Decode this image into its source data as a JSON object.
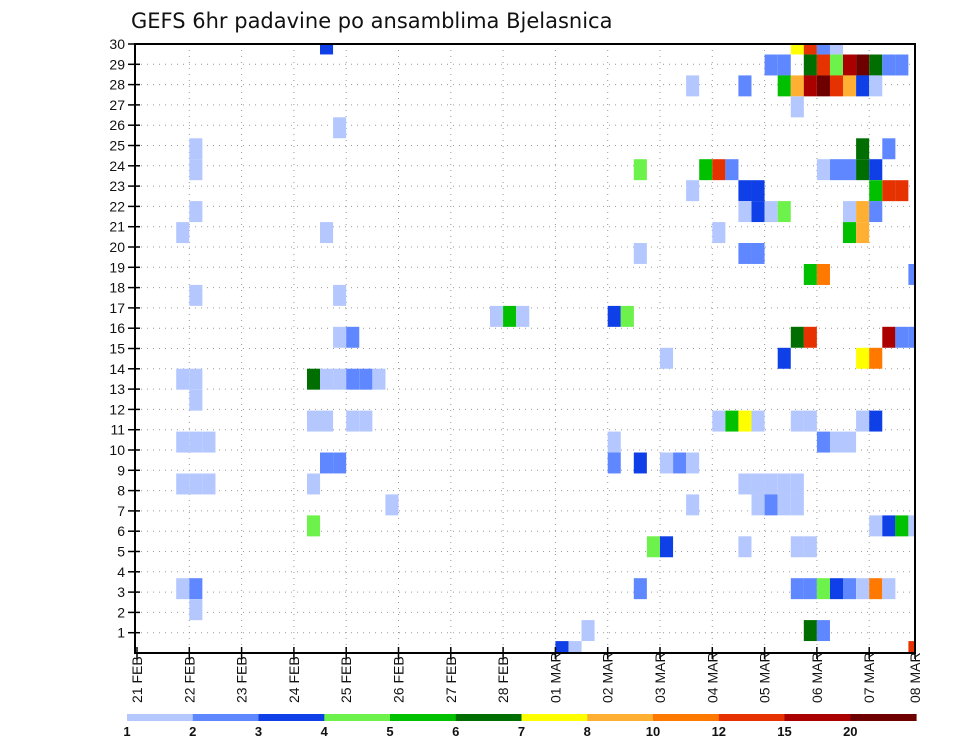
{
  "chart_data": {
    "type": "heatmap",
    "title": "GEFS 6hr padavine po ansamblima Bjelasnica",
    "xlabel": "",
    "ylabel": "",
    "x_axis": {
      "start": "21 FEB",
      "step_hours": 6,
      "steps": 60,
      "tick_labels": [
        "21 FEB",
        "22 FEB",
        "23 FEB",
        "24 FEB",
        "25 FEB",
        "26 FEB",
        "27 FEB",
        "28 FEB",
        "01 MAR",
        "02 MAR",
        "03 MAR",
        "04 MAR",
        "05 MAR",
        "06 MAR",
        "07 MAR",
        "08 MAR"
      ]
    },
    "y_axis": {
      "range": [
        0,
        30
      ],
      "tick_labels": [
        "1",
        "2",
        "3",
        "4",
        "5",
        "6",
        "7",
        "8",
        "9",
        "10",
        "11",
        "12",
        "13",
        "14",
        "15",
        "16",
        "17",
        "18",
        "19",
        "20",
        "21",
        "22",
        "23",
        "24",
        "25",
        "26",
        "27",
        "28",
        "29",
        "30"
      ]
    },
    "grid": true,
    "colorbar": {
      "placement": "bottom",
      "levels": [
        "1",
        "2",
        "3",
        "4",
        "5",
        "6",
        "7",
        "8",
        "10",
        "12",
        "15",
        "20"
      ],
      "colors": [
        "#b4c8ff",
        "#5f87ff",
        "#0f3fe6",
        "#6cf24a",
        "#00c000",
        "#006e00",
        "#ffff00",
        "#ffaf32",
        "#ff7800",
        "#e63200",
        "#aa0000",
        "#6e0000"
      ]
    },
    "cells_format": [
      "step",
      "member",
      "color_class"
    ],
    "cells": [
      [
        14,
        30,
        2
      ],
      [
        50,
        30,
        6
      ],
      [
        51,
        30,
        9
      ],
      [
        52,
        30,
        1
      ],
      [
        53,
        30,
        0
      ],
      [
        48,
        29,
        1
      ],
      [
        49,
        29,
        1
      ],
      [
        51,
        29,
        5
      ],
      [
        52,
        29,
        9
      ],
      [
        53,
        29,
        3
      ],
      [
        54,
        29,
        10
      ],
      [
        55,
        29,
        11
      ],
      [
        56,
        29,
        5
      ],
      [
        57,
        29,
        1
      ],
      [
        58,
        29,
        1
      ],
      [
        42,
        28,
        0
      ],
      [
        46,
        28,
        1
      ],
      [
        49,
        28,
        4
      ],
      [
        50,
        28,
        7
      ],
      [
        51,
        28,
        10
      ],
      [
        52,
        28,
        11
      ],
      [
        53,
        28,
        9
      ],
      [
        54,
        28,
        7
      ],
      [
        55,
        28,
        2
      ],
      [
        56,
        28,
        0
      ],
      [
        50,
        27,
        0
      ],
      [
        15,
        26,
        0
      ],
      [
        4,
        25,
        0
      ],
      [
        55,
        25,
        5
      ],
      [
        57,
        25,
        1
      ],
      [
        4,
        24,
        0
      ],
      [
        38,
        24,
        3
      ],
      [
        43,
        24,
        4
      ],
      [
        44,
        24,
        9
      ],
      [
        45,
        24,
        1
      ],
      [
        52,
        24,
        0
      ],
      [
        53,
        24,
        1
      ],
      [
        54,
        24,
        1
      ],
      [
        55,
        24,
        5
      ],
      [
        56,
        24,
        2
      ],
      [
        42,
        23,
        0
      ],
      [
        46,
        23,
        2
      ],
      [
        47,
        23,
        2
      ],
      [
        56,
        23,
        4
      ],
      [
        57,
        23,
        9
      ],
      [
        58,
        23,
        9
      ],
      [
        4,
        22,
        0
      ],
      [
        46,
        22,
        0
      ],
      [
        47,
        22,
        2
      ],
      [
        48,
        22,
        0
      ],
      [
        49,
        22,
        3
      ],
      [
        54,
        22,
        0
      ],
      [
        55,
        22,
        7
      ],
      [
        56,
        22,
        1
      ],
      [
        3,
        21,
        0
      ],
      [
        14,
        21,
        0
      ],
      [
        44,
        21,
        0
      ],
      [
        54,
        21,
        4
      ],
      [
        55,
        21,
        7
      ],
      [
        38,
        20,
        0
      ],
      [
        46,
        20,
        1
      ],
      [
        47,
        20,
        1
      ],
      [
        51,
        19,
        4
      ],
      [
        52,
        19,
        8
      ],
      [
        59,
        19,
        1
      ],
      [
        4,
        18,
        0
      ],
      [
        15,
        18,
        0
      ],
      [
        27,
        17,
        0
      ],
      [
        28,
        17,
        4
      ],
      [
        29,
        17,
        0
      ],
      [
        36,
        17,
        2
      ],
      [
        37,
        17,
        3
      ],
      [
        15,
        16,
        0
      ],
      [
        16,
        16,
        1
      ],
      [
        50,
        16,
        5
      ],
      [
        51,
        16,
        9
      ],
      [
        57,
        16,
        10
      ],
      [
        58,
        16,
        1
      ],
      [
        59,
        16,
        1
      ],
      [
        40,
        15,
        0
      ],
      [
        49,
        15,
        2
      ],
      [
        55,
        15,
        6
      ],
      [
        56,
        15,
        8
      ],
      [
        3,
        14,
        0
      ],
      [
        4,
        14,
        0
      ],
      [
        13,
        14,
        5
      ],
      [
        14,
        14,
        0
      ],
      [
        15,
        14,
        0
      ],
      [
        16,
        14,
        1
      ],
      [
        17,
        14,
        1
      ],
      [
        18,
        14,
        0
      ],
      [
        4,
        13,
        0
      ],
      [
        13,
        12,
        0
      ],
      [
        14,
        12,
        0
      ],
      [
        16,
        12,
        0
      ],
      [
        17,
        12,
        0
      ],
      [
        44,
        12,
        0
      ],
      [
        45,
        12,
        4
      ],
      [
        46,
        12,
        6
      ],
      [
        47,
        12,
        0
      ],
      [
        50,
        12,
        0
      ],
      [
        51,
        12,
        0
      ],
      [
        55,
        12,
        0
      ],
      [
        56,
        12,
        2
      ],
      [
        3,
        11,
        0
      ],
      [
        4,
        11,
        0
      ],
      [
        5,
        11,
        0
      ],
      [
        36,
        11,
        0
      ],
      [
        52,
        11,
        1
      ],
      [
        53,
        11,
        0
      ],
      [
        54,
        11,
        0
      ],
      [
        14,
        10,
        1
      ],
      [
        15,
        10,
        1
      ],
      [
        36,
        10,
        1
      ],
      [
        38,
        10,
        2
      ],
      [
        40,
        10,
        0
      ],
      [
        41,
        10,
        1
      ],
      [
        42,
        10,
        0
      ],
      [
        3,
        9,
        0
      ],
      [
        4,
        9,
        0
      ],
      [
        5,
        9,
        0
      ],
      [
        13,
        9,
        0
      ],
      [
        46,
        9,
        0
      ],
      [
        47,
        9,
        0
      ],
      [
        48,
        9,
        0
      ],
      [
        49,
        9,
        0
      ],
      [
        50,
        9,
        0
      ],
      [
        19,
        8,
        0
      ],
      [
        42,
        8,
        0
      ],
      [
        47,
        8,
        0
      ],
      [
        48,
        8,
        1
      ],
      [
        49,
        8,
        0
      ],
      [
        50,
        8,
        0
      ],
      [
        13,
        7,
        3
      ],
      [
        56,
        7,
        0
      ],
      [
        57,
        7,
        2
      ],
      [
        58,
        7,
        4
      ],
      [
        59,
        7,
        0
      ],
      [
        39,
        6,
        3
      ],
      [
        40,
        6,
        2
      ],
      [
        46,
        6,
        0
      ],
      [
        50,
        6,
        0
      ],
      [
        51,
        6,
        0
      ],
      [
        3,
        4,
        0
      ],
      [
        4,
        4,
        1
      ],
      [
        38,
        4,
        1
      ],
      [
        50,
        4,
        1
      ],
      [
        51,
        4,
        1
      ],
      [
        52,
        4,
        3
      ],
      [
        53,
        4,
        2
      ],
      [
        54,
        4,
        1
      ],
      [
        55,
        4,
        0
      ],
      [
        56,
        4,
        8
      ],
      [
        57,
        4,
        0
      ],
      [
        4,
        3,
        0
      ],
      [
        34,
        2,
        0
      ],
      [
        51,
        2,
        5
      ],
      [
        52,
        2,
        1
      ],
      [
        32,
        1,
        2
      ],
      [
        33,
        1,
        0
      ],
      [
        59,
        1,
        9
      ]
    ]
  }
}
